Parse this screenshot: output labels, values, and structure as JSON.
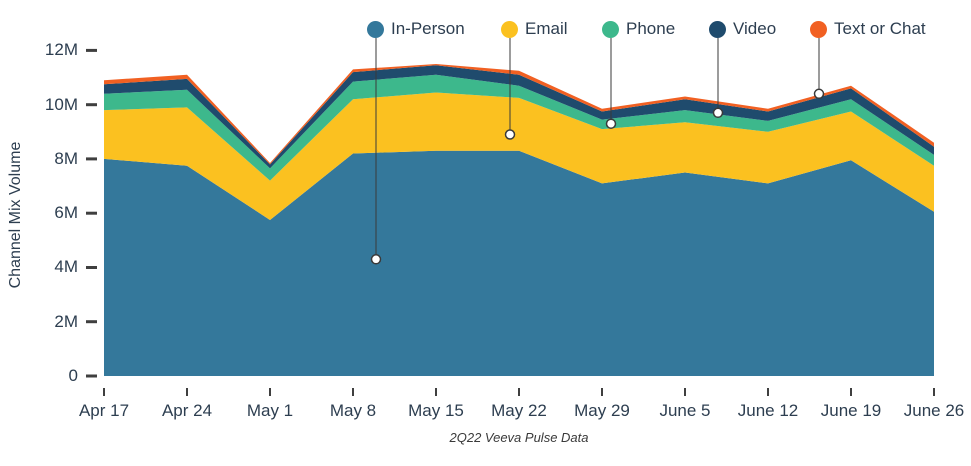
{
  "caption": "2Q22 Veeva Pulse Data",
  "y_axis": {
    "label": "Channel Mix Volume",
    "tick_labels": [
      "0",
      "2M",
      "4M",
      "6M",
      "8M",
      "10M",
      "12M"
    ],
    "tick_values": [
      0,
      2,
      4,
      6,
      8,
      10,
      12
    ]
  },
  "x_axis": {
    "tick_labels": [
      "Apr 17",
      "Apr 24",
      "May 1",
      "May 8",
      "May 15",
      "May 22",
      "May 29",
      "June 5",
      "June 12",
      "June 19",
      "June 26"
    ]
  },
  "legend": {
    "items": [
      {
        "label": "In-Person",
        "color": "#34789b",
        "x": 376,
        "marker_value": 4.3
      },
      {
        "label": "Email",
        "color": "#fbc120",
        "x": 510,
        "marker_value": 8.9
      },
      {
        "label": "Phone",
        "color": "#3db88c",
        "x": 611,
        "marker_value": 9.3
      },
      {
        "label": "Video",
        "color": "#1f4b6d",
        "x": 718,
        "marker_value": 9.7
      },
      {
        "label": "Text or Chat",
        "color": "#f16022",
        "x": 819,
        "marker_value": 10.4
      }
    ]
  },
  "chart_data": {
    "type": "area",
    "stacked": true,
    "x": [
      "Apr 17",
      "Apr 24",
      "May 1",
      "May 8",
      "May 15",
      "May 22",
      "May 29",
      "June 5",
      "June 12",
      "June 19",
      "June 26"
    ],
    "unit": "M",
    "ylim": [
      0,
      12
    ],
    "ylabel": "Channel Mix Volume",
    "grid": false,
    "legend_position": "top",
    "series": [
      {
        "name": "In-Person",
        "color": "#34789b",
        "values": [
          8.0,
          7.75,
          5.75,
          8.2,
          8.3,
          8.3,
          7.1,
          7.5,
          7.1,
          7.95,
          6.05
        ]
      },
      {
        "name": "Email",
        "color": "#fbc120",
        "values": [
          1.8,
          2.15,
          1.45,
          2.0,
          2.15,
          1.95,
          2.0,
          1.85,
          1.9,
          1.8,
          1.7
        ]
      },
      {
        "name": "Phone",
        "color": "#3db88c",
        "values": [
          0.6,
          0.65,
          0.45,
          0.65,
          0.65,
          0.45,
          0.35,
          0.45,
          0.4,
          0.45,
          0.4
        ]
      },
      {
        "name": "Video",
        "color": "#1f4b6d",
        "values": [
          0.35,
          0.4,
          0.15,
          0.35,
          0.35,
          0.4,
          0.3,
          0.4,
          0.35,
          0.4,
          0.3
        ]
      },
      {
        "name": "Text or Chat",
        "color": "#f16022",
        "values": [
          0.15,
          0.15,
          0.05,
          0.1,
          0.05,
          0.15,
          0.1,
          0.1,
          0.1,
          0.1,
          0.15
        ]
      }
    ],
    "stack_totals": [
      10.9,
      11.1,
      7.85,
      11.3,
      11.5,
      11.25,
      9.85,
      10.3,
      9.85,
      10.7,
      8.6
    ]
  },
  "colors": {
    "axis_text": "#2d3e50",
    "tick": "#3f3f3f",
    "leader_line": "#3a3a3a",
    "marker_fill": "#ffffff",
    "background": "#ffffff"
  }
}
